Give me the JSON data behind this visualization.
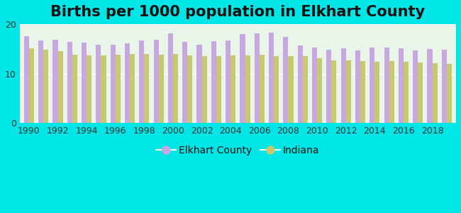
{
  "title": "Births per 1000 population in Elkhart County",
  "title_fontsize": 15,
  "title_fontweight": "bold",
  "background_color": "#00e5e5",
  "plot_bg_top": "#f0f8f0",
  "plot_bg_bottom": "#d8ecd8",
  "years": [
    1990,
    1991,
    1992,
    1993,
    1994,
    1995,
    1996,
    1997,
    1998,
    1999,
    2000,
    2001,
    2002,
    2003,
    2004,
    2005,
    2006,
    2007,
    2008,
    2009,
    2010,
    2011,
    2012,
    2013,
    2014,
    2015,
    2016,
    2017,
    2018,
    2019
  ],
  "elkhart_values": [
    17.5,
    16.7,
    16.8,
    16.4,
    16.3,
    15.8,
    15.9,
    16.1,
    16.7,
    16.8,
    18.2,
    16.4,
    15.8,
    16.5,
    16.7,
    18.0,
    18.1,
    18.3,
    17.4,
    15.7,
    15.2,
    14.8,
    15.1,
    14.7,
    15.3,
    15.2,
    15.1,
    14.7,
    15.0,
    14.8
  ],
  "indiana_values": [
    15.1,
    14.8,
    14.5,
    13.8,
    13.7,
    13.7,
    13.8,
    13.9,
    14.0,
    13.8,
    14.0,
    13.7,
    13.5,
    13.5,
    13.7,
    13.7,
    13.8,
    13.6,
    13.6,
    13.5,
    13.1,
    12.7,
    12.6,
    12.5,
    12.4,
    12.5,
    12.4,
    12.2,
    12.1,
    12.0
  ],
  "elkhart_color": "#c8a8e0",
  "indiana_color": "#c8c870",
  "ylim": [
    0,
    20
  ],
  "yticks": [
    0,
    10,
    20
  ],
  "bar_width": 0.35,
  "legend_elkhart": "Elkhart County",
  "legend_indiana": "Indiana",
  "legend_fontsize": 10
}
